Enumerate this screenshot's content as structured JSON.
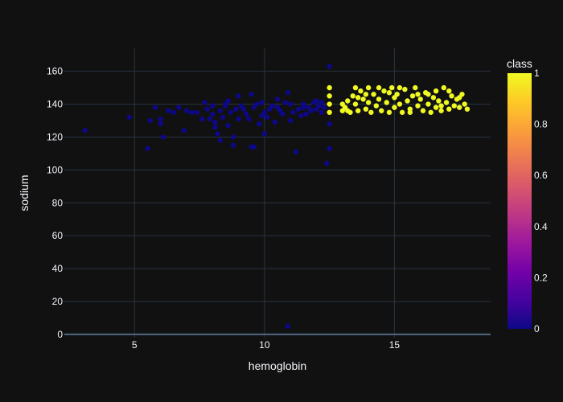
{
  "chart_data": {
    "type": "scatter",
    "title": "",
    "xlabel": "hemoglobin",
    "ylabel": "sodium",
    "xlim": [
      2.3,
      18.7
    ],
    "ylim": [
      -2,
      174
    ],
    "x_ticks": [
      5,
      10,
      15
    ],
    "y_ticks": [
      0,
      20,
      40,
      60,
      80,
      100,
      120,
      140,
      160
    ],
    "grid": true,
    "colorbar": {
      "title": "class",
      "min": 0,
      "max": 1,
      "ticks": [
        0,
        0.2,
        0.4,
        0.6,
        0.8,
        1
      ],
      "tick_labels": [
        "0",
        "0.2",
        "0.4",
        "0.6",
        "0.8",
        "1"
      ],
      "colorscale": [
        "#0d0887",
        "#46039f",
        "#7201a8",
        "#9c179e",
        "#bd3786",
        "#d8576b",
        "#ed7953",
        "#fb9f3a",
        "#fdca26",
        "#f0f921"
      ]
    },
    "series": [
      {
        "class": 0,
        "color": "#0d0887",
        "points": [
          [
            3.1,
            124
          ],
          [
            4.8,
            132
          ],
          [
            5.5,
            113
          ],
          [
            5.6,
            130
          ],
          [
            5.8,
            138
          ],
          [
            6.0,
            131
          ],
          [
            6.0,
            128
          ],
          [
            6.1,
            120
          ],
          [
            6.3,
            136
          ],
          [
            6.5,
            135
          ],
          [
            6.7,
            138
          ],
          [
            6.9,
            124
          ],
          [
            7.2,
            135
          ],
          [
            7.4,
            135
          ],
          [
            7.6,
            131
          ],
          [
            7.7,
            141
          ],
          [
            7.8,
            137
          ],
          [
            7.9,
            131
          ],
          [
            8.0,
            134
          ],
          [
            8.0,
            139
          ],
          [
            8.1,
            129
          ],
          [
            8.1,
            126
          ],
          [
            8.2,
            122
          ],
          [
            8.3,
            136
          ],
          [
            8.4,
            132
          ],
          [
            8.5,
            139
          ],
          [
            8.5,
            140
          ],
          [
            8.6,
            142
          ],
          [
            8.7,
            135
          ],
          [
            8.8,
            120
          ],
          [
            8.8,
            115
          ],
          [
            8.9,
            137
          ],
          [
            9.0,
            145
          ],
          [
            9.1,
            139
          ],
          [
            9.2,
            137
          ],
          [
            9.3,
            134
          ],
          [
            9.4,
            131
          ],
          [
            9.5,
            146
          ],
          [
            9.6,
            138
          ],
          [
            9.7,
            140
          ],
          [
            9.8,
            128
          ],
          [
            9.9,
            141
          ],
          [
            10.0,
            135
          ],
          [
            10.1,
            132
          ],
          [
            10.2,
            137
          ],
          [
            10.3,
            139
          ],
          [
            10.4,
            129
          ],
          [
            10.5,
            138
          ],
          [
            10.6,
            136
          ],
          [
            10.7,
            134
          ],
          [
            10.8,
            141
          ],
          [
            10.9,
            147
          ],
          [
            11.0,
            130
          ],
          [
            11.1,
            135
          ],
          [
            11.2,
            111
          ],
          [
            11.3,
            137
          ],
          [
            11.4,
            133
          ],
          [
            11.5,
            140
          ],
          [
            11.6,
            134
          ],
          [
            11.7,
            138
          ],
          [
            11.8,
            136
          ],
          [
            11.9,
            141
          ],
          [
            12.0,
            137
          ],
          [
            12.1,
            139
          ],
          [
            12.2,
            135
          ],
          [
            12.3,
            138
          ],
          [
            12.4,
            104
          ],
          [
            12.5,
            113
          ],
          [
            12.5,
            128
          ],
          [
            12.5,
            163
          ],
          [
            9.5,
            114
          ],
          [
            9.0,
            131
          ],
          [
            8.6,
            127
          ],
          [
            10.0,
            122
          ],
          [
            10.5,
            143
          ],
          [
            12.0,
            142
          ],
          [
            11.5,
            138
          ],
          [
            10.9,
            5
          ],
          [
            9.6,
            114
          ],
          [
            8.3,
            118
          ],
          [
            9.9,
            133
          ],
          [
            7.0,
            136
          ],
          [
            12.2,
            141
          ],
          [
            11.0,
            140
          ]
        ]
      },
      {
        "class": 1,
        "color": "#f0f921",
        "points": [
          [
            12.5,
            150
          ],
          [
            12.5,
            145
          ],
          [
            12.5,
            140
          ],
          [
            12.5,
            135
          ],
          [
            13.0,
            140
          ],
          [
            13.0,
            136
          ],
          [
            13.1,
            138
          ],
          [
            13.2,
            142
          ],
          [
            13.3,
            135
          ],
          [
            13.4,
            145
          ],
          [
            13.5,
            150
          ],
          [
            13.5,
            140
          ],
          [
            13.6,
            136
          ],
          [
            13.7,
            148
          ],
          [
            13.8,
            143
          ],
          [
            13.9,
            137
          ],
          [
            14.0,
            150
          ],
          [
            14.0,
            141
          ],
          [
            14.1,
            135
          ],
          [
            14.2,
            146
          ],
          [
            14.3,
            139
          ],
          [
            14.4,
            143
          ],
          [
            14.5,
            136
          ],
          [
            14.6,
            148
          ],
          [
            14.7,
            141
          ],
          [
            14.8,
            135
          ],
          [
            14.9,
            150
          ],
          [
            15.0,
            144
          ],
          [
            15.0,
            138
          ],
          [
            15.1,
            146
          ],
          [
            15.2,
            140
          ],
          [
            15.3,
            135
          ],
          [
            15.4,
            149
          ],
          [
            15.5,
            142
          ],
          [
            15.6,
            137
          ],
          [
            15.7,
            145
          ],
          [
            15.8,
            150
          ],
          [
            15.9,
            139
          ],
          [
            16.0,
            143
          ],
          [
            16.1,
            136
          ],
          [
            16.2,
            147
          ],
          [
            16.3,
            140
          ],
          [
            16.4,
            135
          ],
          [
            16.5,
            144
          ],
          [
            16.6,
            138
          ],
          [
            16.7,
            142
          ],
          [
            16.8,
            136
          ],
          [
            16.9,
            150
          ],
          [
            17.0,
            141
          ],
          [
            17.1,
            137
          ],
          [
            17.2,
            145
          ],
          [
            17.3,
            139
          ],
          [
            17.4,
            143
          ],
          [
            17.5,
            138
          ],
          [
            17.6,
            146
          ],
          [
            17.7,
            140
          ],
          [
            17.8,
            137
          ],
          [
            13.2,
            136
          ],
          [
            14.4,
            150
          ],
          [
            15.2,
            150
          ],
          [
            16.6,
            148
          ],
          [
            17.1,
            148
          ],
          [
            13.6,
            144
          ],
          [
            14.8,
            147
          ],
          [
            15.9,
            146
          ],
          [
            16.8,
            139
          ],
          [
            17.5,
            144
          ],
          [
            13.9,
            146
          ],
          [
            15.6,
            135
          ],
          [
            16.3,
            146
          ]
        ]
      }
    ]
  }
}
